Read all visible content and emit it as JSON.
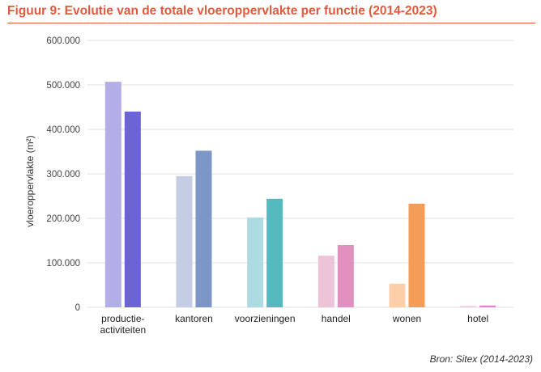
{
  "figure": {
    "title": "Figuur 9: Evolutie van de totale vloeroppervlakte per functie (2014-2023)",
    "source": "Bron: Sitex (2014-2023)"
  },
  "chart_data": {
    "type": "bar",
    "categories": [
      [
        "productie-",
        "activiteiten"
      ],
      [
        "kantoren"
      ],
      [
        "voorzieningen"
      ],
      [
        "handel"
      ],
      [
        "wonen"
      ],
      [
        "hotel"
      ]
    ],
    "series": [
      {
        "values": [
          507000,
          295000,
          202000,
          116000,
          53000,
          3000
        ]
      },
      {
        "values": [
          440000,
          352000,
          244000,
          140000,
          233000,
          4000
        ]
      }
    ],
    "colors": [
      [
        "#b3aee8",
        "#c4cde3",
        "#acdbe2",
        "#edc3d8",
        "#fccfa8",
        "#f5c8e6"
      ],
      [
        "#6c63d7",
        "#7c96c8",
        "#56b9c0",
        "#e091c0",
        "#f59d57",
        "#e87fd0"
      ]
    ],
    "ylabel": "vloeroppervlakte (m²)",
    "ylim": [
      0,
      600000
    ],
    "yticks": [
      0,
      100000,
      200000,
      300000,
      400000,
      500000,
      600000
    ],
    "ytick_labels": [
      "0",
      "100.000",
      "200.000",
      "300.000",
      "400.000",
      "500.000",
      "600.000"
    ],
    "grid": true,
    "gridline_color": "#e2e2e2"
  }
}
